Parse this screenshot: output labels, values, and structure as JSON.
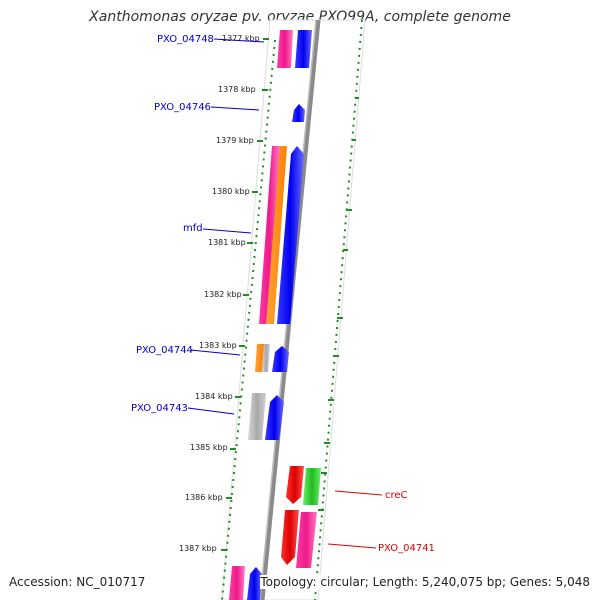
{
  "header": {
    "title": "Xanthomonas oryzae pv. oryzae PXO99A, complete genome"
  },
  "footer": {
    "accession": "Accession: NC_010717",
    "summary": "Topology: circular; Length: 5,240,075 bp; Genes: 5,048"
  },
  "map": {
    "kbp_labels": [
      "1377 kbp",
      "1378 kbp",
      "1379 kbp",
      "1380 kbp",
      "1381 kbp",
      "1382 kbp",
      "1383 kbp",
      "1384 kbp",
      "1385 kbp",
      "1386 kbp",
      "1387 kbp"
    ],
    "genes": [
      {
        "label": "PXO_04748",
        "color": "#0000cc"
      },
      {
        "label": "PXO_04746",
        "color": "#0000cc"
      },
      {
        "label": "mfd",
        "color": "#0000cc"
      },
      {
        "label": "PXO_04744",
        "color": "#0000cc"
      },
      {
        "label": "PXO_04743",
        "color": "#0000cc"
      },
      {
        "label": "creC",
        "color": "#dd0000"
      },
      {
        "label": "PXO_04741",
        "color": "#dd0000"
      }
    ],
    "feature_colors": {
      "cds_forward": "#0000ff",
      "cds_reverse_pink": "#ff1493",
      "orange": "#ff8c00",
      "gray": "#b0b0b0",
      "red": "#ee0000",
      "green": "#22cc22",
      "backbone": "#8a8a8a",
      "gc_ticks": "#228b22"
    }
  }
}
